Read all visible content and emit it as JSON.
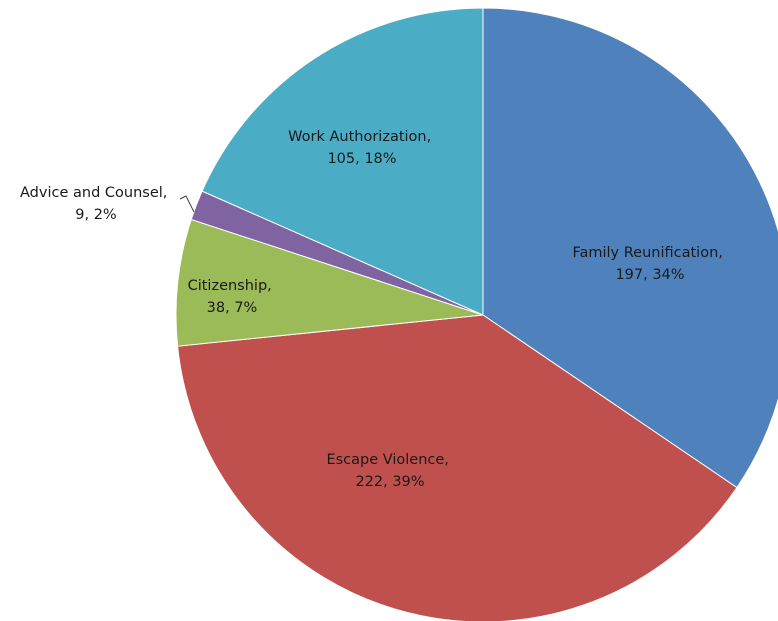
{
  "chart_data": {
    "type": "pie",
    "title": "",
    "slices": [
      {
        "name": "Family Reunification",
        "value": 197,
        "percent": "34%",
        "color": "#4F81BD",
        "label_line1": "Family Reunification,",
        "label_line2": "197, 34%"
      },
      {
        "name": "Escape Violence",
        "value": 222,
        "percent": "39%",
        "color": "#C0504D",
        "label_line1": "Escape Violence,",
        "label_line2": "222, 39%"
      },
      {
        "name": "Citizenship",
        "value": 38,
        "percent": "7%",
        "color": "#9BBB59",
        "label_line1": "Citizenship,",
        "label_line2": "38, 7%"
      },
      {
        "name": "Advice and Counsel",
        "value": 9,
        "percent": "2%",
        "color": "#8064A2",
        "label_line1": "Advice and Counsel,",
        "label_line2": "9, 2%"
      },
      {
        "name": "Work Authorization",
        "value": 105,
        "percent": "18%",
        "color": "#4BACC6",
        "label_line1": "Work Authorization,",
        "label_line2": "105, 18%"
      }
    ],
    "start_angle_deg": 0,
    "direction": "clockwise",
    "legend": "none"
  }
}
